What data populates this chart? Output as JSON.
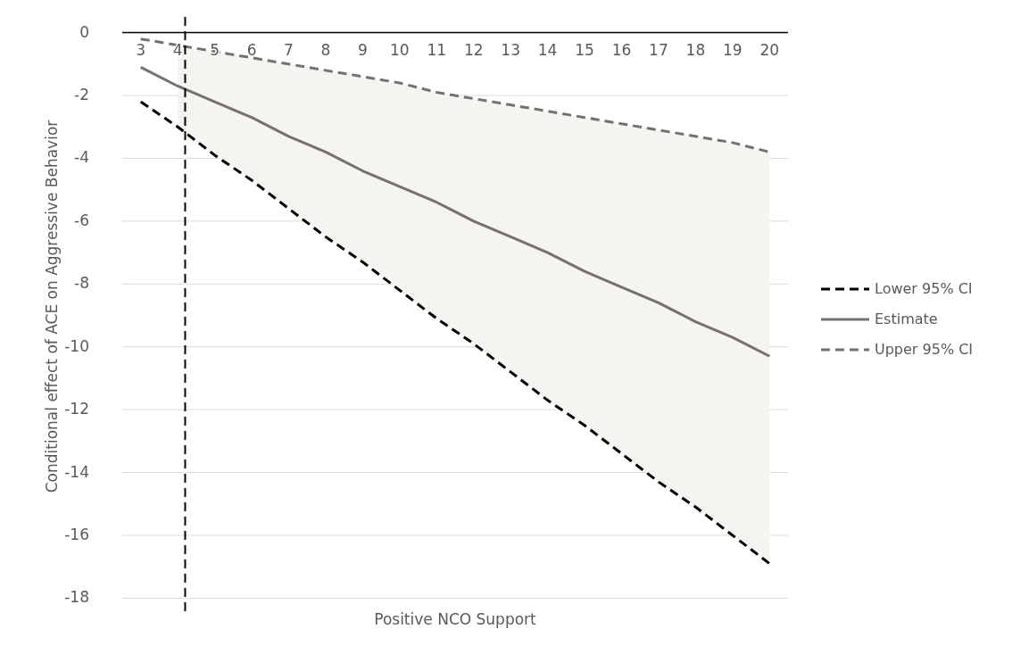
{
  "chart_data": {
    "type": "line",
    "xlabel": "Positive NCO Support",
    "ylabel": "Conditional effect of ACE on Aggressive  Behavior",
    "x": [
      3,
      4,
      5,
      6,
      7,
      8,
      9,
      10,
      11,
      12,
      13,
      14,
      15,
      16,
      17,
      18,
      19,
      20
    ],
    "series": [
      {
        "name": "Lower 95% CI",
        "color": "#000000",
        "line_style": "dashed",
        "values": [
          -2.2,
          -3.0,
          -3.9,
          -4.7,
          -5.6,
          -6.5,
          -7.3,
          -8.2,
          -9.1,
          -9.9,
          -10.8,
          -11.7,
          -12.5,
          -13.4,
          -14.3,
          -15.1,
          -16.0,
          -16.9
        ]
      },
      {
        "name": "Estimate",
        "color": "#767171",
        "line_style": "solid",
        "values": [
          -1.1,
          -1.7,
          -2.2,
          -2.7,
          -3.3,
          -3.8,
          -4.4,
          -4.9,
          -5.4,
          -6.0,
          -6.5,
          -7.0,
          -7.6,
          -8.1,
          -8.6,
          -9.2,
          -9.7,
          -10.3
        ],
        "lower": [
          null,
          -3.0,
          -3.9,
          -4.7,
          -5.6,
          -6.5,
          -7.3,
          -8.2,
          -9.1,
          -9.9,
          -10.8,
          -11.7,
          -12.5,
          -13.4,
          -14.3,
          -15.1,
          -16.0,
          -16.9
        ],
        "upper": [
          null,
          -0.4,
          -0.6,
          -0.8,
          -1.0,
          -1.2,
          -1.4,
          -1.6,
          -1.9,
          -2.1,
          -2.3,
          -2.5,
          -2.7,
          -2.9,
          -3.1,
          -3.3,
          -3.5,
          -3.8
        ]
      },
      {
        "name": "Upper 95% CI",
        "color": "#767171",
        "line_style": "dashed",
        "values": [
          -0.2,
          -0.4,
          -0.6,
          -0.8,
          -1.0,
          -1.2,
          -1.4,
          -1.6,
          -1.9,
          -2.1,
          -2.3,
          -2.5,
          -2.7,
          -2.9,
          -3.1,
          -3.3,
          -3.5,
          -3.8
        ]
      }
    ],
    "xlim": [
      2.5,
      20.5
    ],
    "xticks": [
      3,
      4,
      5,
      6,
      7,
      8,
      9,
      10,
      11,
      12,
      13,
      14,
      15,
      16,
      17,
      18,
      19,
      20
    ],
    "ylim": [
      -18.5,
      0.5
    ],
    "yticks": [
      -18,
      -16,
      -14,
      -12,
      -10,
      -8,
      -6,
      -4,
      -2,
      0
    ],
    "ref_lines": [
      {
        "axis": "x",
        "value": 4.2,
        "color": "#000000",
        "line_style": "dashed"
      }
    ],
    "grid": "y",
    "legend": "right",
    "marker": "none"
  }
}
